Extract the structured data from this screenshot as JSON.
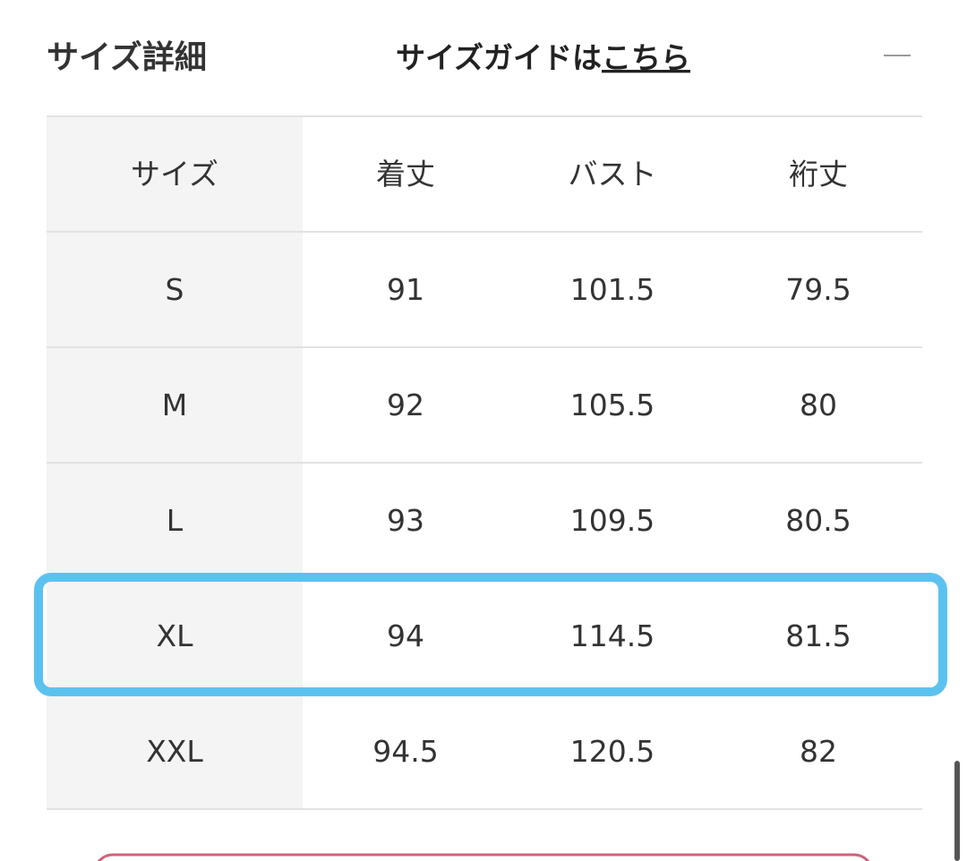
{
  "header": {
    "title": "サイズ詳細",
    "guide_text": "サイズガイドは",
    "guide_link": "こちら"
  },
  "table": {
    "columns": [
      "サイズ",
      "着丈",
      "バスト",
      "裄丈"
    ],
    "rows": [
      [
        "S",
        "91",
        "101.5",
        "79.5"
      ],
      [
        "M",
        "92",
        "105.5",
        "80"
      ],
      [
        "L",
        "93",
        "109.5",
        "80.5"
      ],
      [
        "XL",
        "94",
        "114.5",
        "81.5"
      ],
      [
        "XXL",
        "94.5",
        "120.5",
        "82"
      ]
    ]
  }
}
